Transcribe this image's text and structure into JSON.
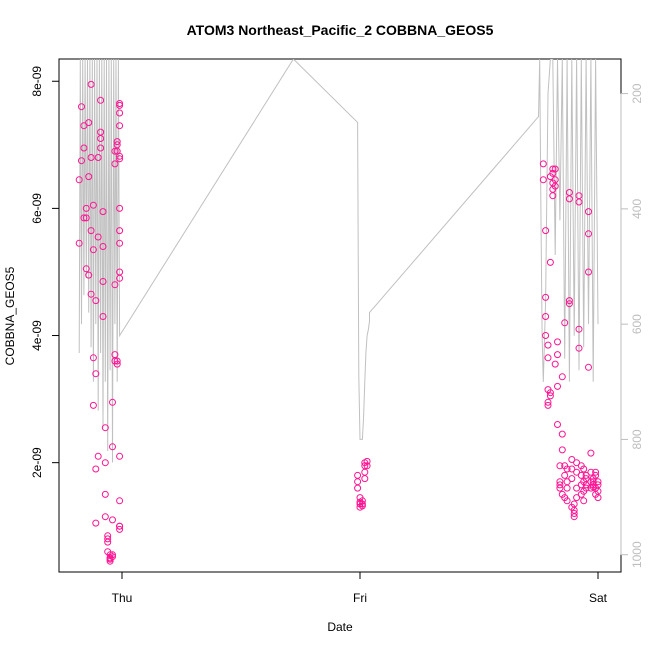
{
  "chart_data": {
    "type": "scatter",
    "title": "ATOM3 Northeast_Pacific_2 COBBNA_GEOS5",
    "xlabel": "Date",
    "ylabel": "COBBNA_GEOS5",
    "x_ticks": [
      "Thu",
      "Fri",
      "Sat"
    ],
    "xlim": [
      -0.2,
      2.0
    ],
    "ylim": [
      2.8e-10,
      8.35e-09
    ],
    "y_ticks": [
      {
        "value": 2e-09,
        "label": "2e-09"
      },
      {
        "value": 4e-09,
        "label": "4e-09"
      },
      {
        "value": 6e-09,
        "label": "6e-09"
      },
      {
        "value": 8e-09,
        "label": "8e-09"
      }
    ],
    "right_axis": {
      "label": "",
      "reversed": true,
      "range": [
        140,
        1030
      ],
      "ticks": [
        200,
        400,
        600,
        800,
        1000
      ]
    },
    "colors": {
      "points": "#ff1493",
      "profile": "#c0c0c0"
    },
    "series": [
      {
        "kind": "points",
        "x": [
          -0.18,
          -0.18,
          -0.17,
          -0.17,
          -0.16,
          -0.16,
          -0.16,
          -0.15,
          -0.15,
          -0.15,
          -0.14,
          -0.14,
          -0.14,
          -0.13,
          -0.13,
          -0.13,
          -0.13,
          -0.12,
          -0.12,
          -0.12,
          -0.12,
          -0.11,
          -0.11,
          -0.11,
          -0.11,
          -0.1,
          -0.1,
          -0.1,
          -0.09,
          -0.09,
          -0.09,
          -0.09,
          -0.08,
          -0.08,
          -0.08,
          -0.08,
          -0.07,
          -0.07,
          -0.07,
          -0.07,
          -0.06,
          -0.06,
          -0.06,
          -0.06,
          -0.05,
          -0.05,
          -0.05,
          -0.05,
          -0.05,
          -0.04,
          -0.04,
          -0.04,
          -0.04,
          -0.04,
          -0.03,
          -0.03,
          -0.03,
          -0.03,
          -0.03,
          -0.02,
          -0.02,
          -0.02,
          -0.02,
          -0.02,
          -0.01,
          -0.01,
          -0.01,
          -0.01,
          -0.01,
          -0.01,
          -0.01,
          -0.01,
          -0.01,
          -0.01,
          -0.01,
          -0.01,
          -0.01,
          -0.01,
          -0.01,
          -0.01
        ],
        "y": [
          5.45e-09,
          6.45e-09,
          7.6e-09,
          6.75e-09,
          5.85e-09,
          6.95e-09,
          7.3e-09,
          6e-09,
          5.05e-09,
          5.85e-09,
          4.95e-09,
          6.5e-09,
          7.35e-09,
          6.8e-09,
          5.65e-09,
          4.65e-09,
          7.95e-09,
          5.35e-09,
          6.05e-09,
          3.65e-09,
          2.9e-09,
          4.55e-09,
          3.4e-09,
          1.9e-09,
          1.05e-09,
          6.8e-09,
          5.55e-09,
          2.1e-09,
          7.1e-09,
          7.2e-09,
          6.95e-09,
          7.7e-09,
          5.95e-09,
          5.4e-09,
          4.85e-09,
          4.3e-09,
          2.55e-09,
          2e-09,
          1.5e-09,
          1.15e-09,
          8.5e-10,
          8e-10,
          7.5e-10,
          6e-10,
          5.5e-10,
          5e-10,
          5e-10,
          4.5e-10,
          4.8e-10,
          5.2e-10,
          5.5e-10,
          1.1e-09,
          2.25e-09,
          2.95e-09,
          3.7e-09,
          3.6e-09,
          4.8e-09,
          6.7e-09,
          6.9e-09,
          7e-09,
          6.9e-09,
          7.05e-09,
          3.55e-09,
          3.6e-09,
          1e-09,
          1e-09,
          7.62e-09,
          7.3e-09,
          7.5e-09,
          7.65e-09,
          6.78e-09,
          6.82e-09,
          5.65e-09,
          4.9e-09,
          5e-09,
          5.45e-09,
          6e-09,
          1.4e-09,
          9.5e-10,
          2.1e-09
        ]
      },
      {
        "kind": "points",
        "x": [
          0.99,
          0.99,
          0.99,
          1.0,
          1.0,
          1.0,
          1.0,
          1.01,
          1.01,
          1.01,
          1.02,
          1.02,
          1.02,
          1.02,
          1.03,
          1.03
        ],
        "y": [
          1.8e-09,
          1.7e-09,
          1.6e-09,
          1.45e-09,
          1.35e-09,
          1.3e-09,
          1.38e-09,
          1.4e-09,
          1.35e-09,
          1.32e-09,
          1.75e-09,
          1.85e-09,
          1.95e-09,
          2e-09,
          2.02e-09,
          1.95e-09
        ]
      },
      {
        "kind": "points",
        "x": [
          1.77,
          1.77,
          1.78,
          1.78,
          1.78,
          1.78,
          1.79,
          1.79,
          1.79,
          1.79,
          1.79,
          1.8,
          1.8,
          1.8,
          1.8,
          1.81,
          1.81,
          1.81,
          1.81,
          1.81,
          1.82,
          1.82,
          1.82,
          1.82,
          1.83,
          1.83,
          1.83,
          1.83,
          1.84,
          1.84,
          1.84,
          1.84,
          1.85,
          1.85,
          1.85,
          1.85,
          1.86,
          1.86,
          1.86,
          1.86,
          1.87,
          1.87,
          1.87,
          1.87,
          1.88,
          1.88,
          1.88,
          1.88,
          1.89,
          1.89,
          1.89,
          1.89,
          1.9,
          1.9,
          1.9,
          1.9,
          1.91,
          1.91,
          1.91,
          1.91,
          1.92,
          1.92,
          1.92,
          1.92,
          1.93,
          1.93,
          1.93,
          1.93,
          1.94,
          1.94,
          1.94,
          1.94,
          1.95,
          1.95,
          1.95,
          1.95,
          1.96,
          1.96,
          1.96,
          1.96,
          1.97,
          1.97,
          1.97,
          1.97,
          1.98,
          1.98,
          1.98,
          1.98,
          1.99,
          1.99,
          1.99,
          1.99,
          2.0,
          2.0,
          2.0,
          2.0
        ],
        "y": [
          6.7e-09,
          6.45e-09,
          5.65e-09,
          4.6e-09,
          4.3e-09,
          4e-09,
          3.85e-09,
          3.65e-09,
          3.15e-09,
          2.9e-09,
          2.95e-09,
          3.1e-09,
          3.05e-09,
          5.15e-09,
          6.5e-09,
          6.55e-09,
          6.62e-09,
          6.4e-09,
          6.3e-09,
          6.2e-09,
          6.35e-09,
          6.45e-09,
          6.62e-09,
          3.55e-09,
          3.7e-09,
          3.9e-09,
          3.2e-09,
          2.6e-09,
          1.95e-09,
          1.7e-09,
          1.6e-09,
          1.65e-09,
          2.2e-09,
          2.45e-09,
          3.35e-09,
          1.5e-09,
          1.45e-09,
          1.8e-09,
          1.95e-09,
          4.2e-09,
          1.9e-09,
          1.7e-09,
          1.6e-09,
          1.4e-09,
          6.25e-09,
          6.15e-09,
          4.55e-09,
          4.5e-09,
          2.05e-09,
          1.9e-09,
          1.75e-09,
          1.3e-09,
          1.2e-09,
          1.15e-09,
          1.25e-09,
          1.35e-09,
          1.45e-09,
          1.6e-09,
          1.85e-09,
          2e-09,
          6.2e-09,
          6.1e-09,
          4.1e-09,
          3.8e-09,
          1.95e-09,
          1.8e-09,
          1.65e-09,
          1.5e-09,
          1.4e-09,
          1.55e-09,
          1.7e-09,
          1.9e-09,
          1.75e-09,
          1.8e-09,
          1.6e-09,
          1.65e-09,
          5.95e-09,
          5.6e-09,
          5e-09,
          3.5e-09,
          2.15e-09,
          1.85e-09,
          1.7e-09,
          1.6e-09,
          1.62e-09,
          1.65e-09,
          1.7e-09,
          1.75e-09,
          1.8e-09,
          1.85e-09,
          1.6e-09,
          1.5e-09,
          1.45e-09,
          1.65e-09,
          1.7e-09,
          1.55e-09
        ]
      },
      {
        "kind": "profile",
        "right_axis": true,
        "x": [
          -0.18,
          -0.175,
          -0.17,
          -0.165,
          -0.16,
          -0.155,
          -0.15,
          -0.145,
          -0.14,
          -0.135,
          -0.13,
          -0.125,
          -0.12,
          -0.115,
          -0.11,
          -0.105,
          -0.1,
          -0.095,
          -0.09,
          -0.085,
          -0.08,
          -0.075,
          -0.07,
          -0.065,
          -0.06,
          -0.055,
          -0.05,
          -0.045,
          -0.04,
          -0.035,
          -0.03,
          -0.025,
          -0.02,
          -0.015,
          -0.01,
          0.72,
          0.99,
          0.995,
          1.0,
          1.005,
          1.01,
          1.015,
          1.02,
          1.025,
          1.03,
          1.035,
          1.04,
          1.04,
          1.75,
          1.755,
          1.76,
          1.765,
          1.77,
          1.78,
          1.79,
          1.8,
          1.81,
          1.82,
          1.83,
          1.84,
          1.85,
          1.86,
          1.87,
          1.88,
          1.89,
          1.9,
          1.91,
          1.92,
          1.93,
          1.94,
          1.95,
          1.96,
          1.97,
          1.98,
          1.99,
          2.0
        ],
        "y": [
          650,
          140,
          600,
          140,
          550,
          140,
          520,
          140,
          580,
          140,
          640,
          140,
          700,
          140,
          600,
          140,
          750,
          140,
          650,
          140,
          780,
          140,
          700,
          140,
          820,
          140,
          680,
          140,
          840,
          140,
          600,
          140,
          700,
          140,
          620,
          140,
          250,
          690,
          800,
          800,
          800,
          760,
          700,
          650,
          620,
          610,
          595,
          580,
          240,
          140,
          400,
          620,
          700,
          560,
          200,
          140,
          140,
          480,
          140,
          420,
          140,
          660,
          140,
          700,
          140,
          620,
          140,
          680,
          140,
          640,
          140,
          600,
          140,
          700,
          140,
          600
        ]
      }
    ]
  }
}
